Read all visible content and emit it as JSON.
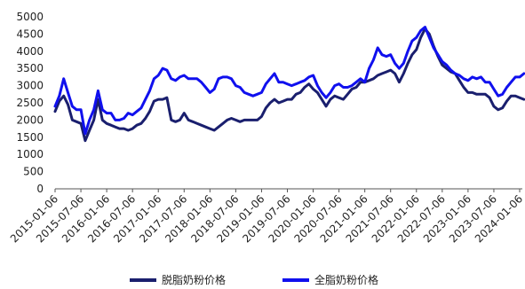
{
  "chart_data": {
    "type": "line",
    "title": "",
    "xlabel": "",
    "ylabel": "",
    "ylim": [
      0,
      5000
    ],
    "yticks": [
      0,
      500,
      1000,
      1500,
      2000,
      2500,
      3000,
      3500,
      4000,
      4500,
      5000
    ],
    "x_tick_labels": [
      "2015-01-06",
      "2015-07-06",
      "2016-01-06",
      "2016-07-06",
      "2017-01-06",
      "2017-07-06",
      "2018-01-06",
      "2018-07-06",
      "2019-01-06",
      "2019-07-06",
      "2020-01-06",
      "2020-07-06",
      "2021-01-06",
      "2021-07-06",
      "2022-01-06",
      "2022-07-06",
      "2023-01-06",
      "2023-07-06",
      "2024-01-06"
    ],
    "x": [
      "2015-01",
      "2015-02",
      "2015-03",
      "2015-04",
      "2015-05",
      "2015-06",
      "2015-07",
      "2015-08",
      "2015-09",
      "2015-10",
      "2015-11",
      "2015-12",
      "2016-01",
      "2016-02",
      "2016-03",
      "2016-04",
      "2016-05",
      "2016-06",
      "2016-07",
      "2016-08",
      "2016-09",
      "2016-10",
      "2016-11",
      "2016-12",
      "2017-01",
      "2017-02",
      "2017-03",
      "2017-04",
      "2017-05",
      "2017-06",
      "2017-07",
      "2017-08",
      "2017-09",
      "2017-10",
      "2017-11",
      "2017-12",
      "2018-01",
      "2018-02",
      "2018-03",
      "2018-04",
      "2018-05",
      "2018-06",
      "2018-07",
      "2018-08",
      "2018-09",
      "2018-10",
      "2018-11",
      "2018-12",
      "2019-01",
      "2019-02",
      "2019-03",
      "2019-04",
      "2019-05",
      "2019-06",
      "2019-07",
      "2019-08",
      "2019-09",
      "2019-10",
      "2019-11",
      "2019-12",
      "2020-01",
      "2020-02",
      "2020-03",
      "2020-04",
      "2020-05",
      "2020-06",
      "2020-07",
      "2020-08",
      "2020-09",
      "2020-10",
      "2020-11",
      "2020-12",
      "2021-01",
      "2021-02",
      "2021-03",
      "2021-04",
      "2021-05",
      "2021-06",
      "2021-07",
      "2021-08",
      "2021-09",
      "2021-10",
      "2021-11",
      "2021-12",
      "2022-01",
      "2022-02",
      "2022-03",
      "2022-04",
      "2022-05",
      "2022-06",
      "2022-07",
      "2022-08",
      "2022-09",
      "2022-10",
      "2022-11",
      "2022-12",
      "2023-01",
      "2023-02",
      "2023-03",
      "2023-04",
      "2023-05",
      "2023-06",
      "2023-07",
      "2023-08",
      "2023-09",
      "2023-10",
      "2023-11",
      "2023-12",
      "2024-01",
      "2024-02"
    ],
    "series": [
      {
        "name": "脱脂奶粉价格",
        "color": "#1a1f6e",
        "values": [
          2250,
          2550,
          2700,
          2450,
          2000,
          1950,
          1900,
          1400,
          1700,
          2000,
          2600,
          2000,
          1900,
          1850,
          1800,
          1750,
          1750,
          1700,
          1750,
          1850,
          1900,
          2050,
          2250,
          2550,
          2600,
          2600,
          2650,
          2000,
          1950,
          2000,
          2200,
          2000,
          1950,
          1900,
          1850,
          1800,
          1750,
          1700,
          1800,
          1900,
          2000,
          2050,
          2000,
          1950,
          2000,
          2000,
          2000,
          2000,
          2100,
          2350,
          2500,
          2600,
          2500,
          2550,
          2600,
          2600,
          2750,
          2800,
          2950,
          3050,
          2900,
          2800,
          2600,
          2400,
          2600,
          2700,
          2650,
          2600,
          2750,
          2900,
          2950,
          3100,
          3100,
          3150,
          3200,
          3300,
          3350,
          3400,
          3450,
          3350,
          3100,
          3350,
          3650,
          3900,
          4050,
          4400,
          4650,
          4500,
          4150,
          3850,
          3600,
          3500,
          3400,
          3350,
          3150,
          2950,
          2800,
          2800,
          2750,
          2750,
          2750,
          2650,
          2400,
          2300,
          2350,
          2550,
          2700,
          2700,
          2650,
          2600
        ]
      },
      {
        "name": "全脂奶粉价格",
        "color": "#1010ee",
        "values": [
          2400,
          2700,
          3200,
          2800,
          2400,
          2300,
          2300,
          1600,
          2000,
          2300,
          2850,
          2300,
          2200,
          2200,
          2000,
          2000,
          2050,
          2200,
          2150,
          2250,
          2350,
          2600,
          2850,
          3200,
          3300,
          3500,
          3450,
          3200,
          3150,
          3250,
          3300,
          3200,
          3200,
          3200,
          3100,
          2950,
          2800,
          2900,
          3200,
          3250,
          3250,
          3200,
          3000,
          2950,
          2800,
          2750,
          2700,
          2750,
          2800,
          3050,
          3200,
          3350,
          3100,
          3100,
          3050,
          3000,
          3050,
          3100,
          3150,
          3250,
          3300,
          3000,
          2800,
          2650,
          2800,
          3000,
          3050,
          2950,
          2950,
          3000,
          3100,
          3200,
          3100,
          3500,
          3750,
          4100,
          3900,
          3850,
          3900,
          3650,
          3500,
          3650,
          4000,
          4300,
          4400,
          4600,
          4700,
          4400,
          4100,
          3900,
          3700,
          3600,
          3450,
          3350,
          3300,
          3200,
          3150,
          3250,
          3200,
          3250,
          3100,
          3100,
          2900,
          2700,
          2750,
          2950,
          3100,
          3250,
          3250,
          3350
        ]
      }
    ],
    "legend": {
      "position": "bottom"
    }
  }
}
